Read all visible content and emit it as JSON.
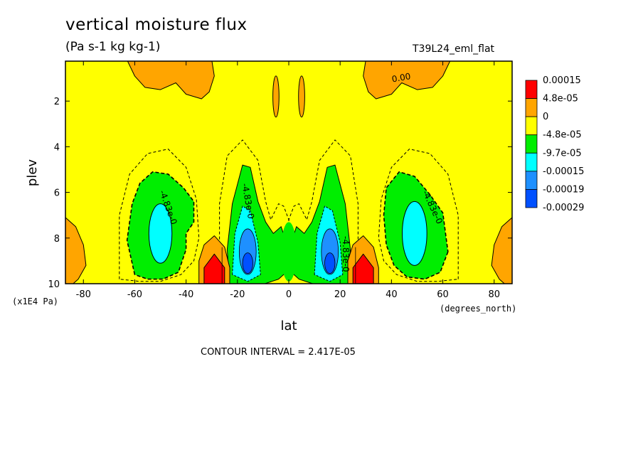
{
  "title": "vertical moisture flux",
  "units": "(Pa s-1 kg kg-1)",
  "run_name": "T39L24_eml_flat",
  "contour_interval_text": "CONTOUR INTERVAL = 2.417E-05",
  "colors": {
    "red": "#ff0000",
    "orange": "#ffa500",
    "yellow": "#ffff00",
    "green": "#00ee00",
    "cyan": "#00ffff",
    "light_blue": "#1e90ff",
    "blue": "#0050ff",
    "line": "#000000"
  },
  "chart_data": {
    "type": "heatmap",
    "title": "vertical moisture flux",
    "subtitle": "(Pa s-1 kg kg-1)",
    "xlabel": "lat",
    "ylabel": "plev",
    "x_unit": "(degrees_north)",
    "y_unit": "(x1E4 Pa)",
    "xlim": [
      -87,
      87
    ],
    "ylim": [
      10,
      0.25
    ],
    "y_reversed": true,
    "x_ticks": [
      -80,
      -60,
      -40,
      -20,
      0,
      20,
      40,
      60,
      80
    ],
    "y_ticks": [
      2,
      4,
      6,
      8,
      10
    ],
    "contour_interval": 2.417e-05,
    "contour_labels": [
      "0.00",
      "-4.83e-0",
      "-4.83e-0",
      "-4.83e-0",
      "-4.83e-0"
    ],
    "colorbar": {
      "labels": [
        "0.00015",
        "4.8e-05",
        "0",
        "-4.8e-05",
        "-9.7e-05",
        "-0.00015",
        "-0.00019",
        "-0.00029"
      ],
      "colors": [
        "#ff0000",
        "#ffa500",
        "#ffff00",
        "#00ee00",
        "#00ffff",
        "#1e90ff",
        "#0050ff"
      ]
    },
    "regions": [
      {
        "name": "upper-orange-left",
        "sign": "positive",
        "lat_range": [
          -60,
          -30
        ],
        "plev_range": [
          0.25,
          2
        ]
      },
      {
        "name": "upper-orange-right",
        "sign": "positive",
        "lat_range": [
          30,
          60
        ],
        "plev_range": [
          0.25,
          2
        ]
      },
      {
        "name": "low-orange-left",
        "sign": "positive",
        "lat_range": [
          -87,
          -76
        ],
        "plev_range": [
          7,
          10
        ]
      },
      {
        "name": "low-orange-right",
        "sign": "positive",
        "lat_range": [
          76,
          87
        ],
        "plev_range": [
          7,
          10
        ]
      },
      {
        "name": "red-core-left",
        "sign": "positive",
        "lat_range": [
          -34,
          -24
        ],
        "plev_range": [
          8.7,
          10
        ],
        "max": 0.00015
      },
      {
        "name": "red-core-right",
        "sign": "positive",
        "lat_range": [
          24,
          34
        ],
        "plev_range": [
          8.7,
          10
        ],
        "max": 0.00015
      },
      {
        "name": "green-lobe-left",
        "sign": "negative",
        "lat_range": [
          -58,
          -35
        ],
        "plev_range": [
          5.2,
          9.8
        ]
      },
      {
        "name": "green-lobe-right",
        "sign": "negative",
        "lat_range": [
          35,
          62
        ],
        "plev_range": [
          5.2,
          9.8
        ]
      },
      {
        "name": "cyan-core-left",
        "sign": "negative",
        "lat_range": [
          -55,
          -45
        ],
        "plev_range": [
          6.5,
          8.9
        ]
      },
      {
        "name": "cyan-core-right",
        "sign": "negative",
        "lat_range": [
          45,
          55
        ],
        "plev_range": [
          6.5,
          8.9
        ]
      },
      {
        "name": "inner-column-left",
        "sign": "negative",
        "lat_range": [
          -24,
          -9
        ],
        "plev_range": [
          4.7,
          10
        ]
      },
      {
        "name": "inner-column-right",
        "sign": "negative",
        "lat_range": [
          9,
          24
        ],
        "plev_range": [
          4.7,
          10
        ]
      },
      {
        "name": "blue-core-left",
        "sign": "negative",
        "lat_range": [
          -19,
          -13
        ],
        "plev_range": [
          8.2,
          9.6
        ],
        "min": -0.00029
      },
      {
        "name": "blue-core-right",
        "sign": "negative",
        "lat_range": [
          13,
          19
        ],
        "plev_range": [
          8.2,
          9.6
        ],
        "min": -0.00029
      }
    ]
  }
}
